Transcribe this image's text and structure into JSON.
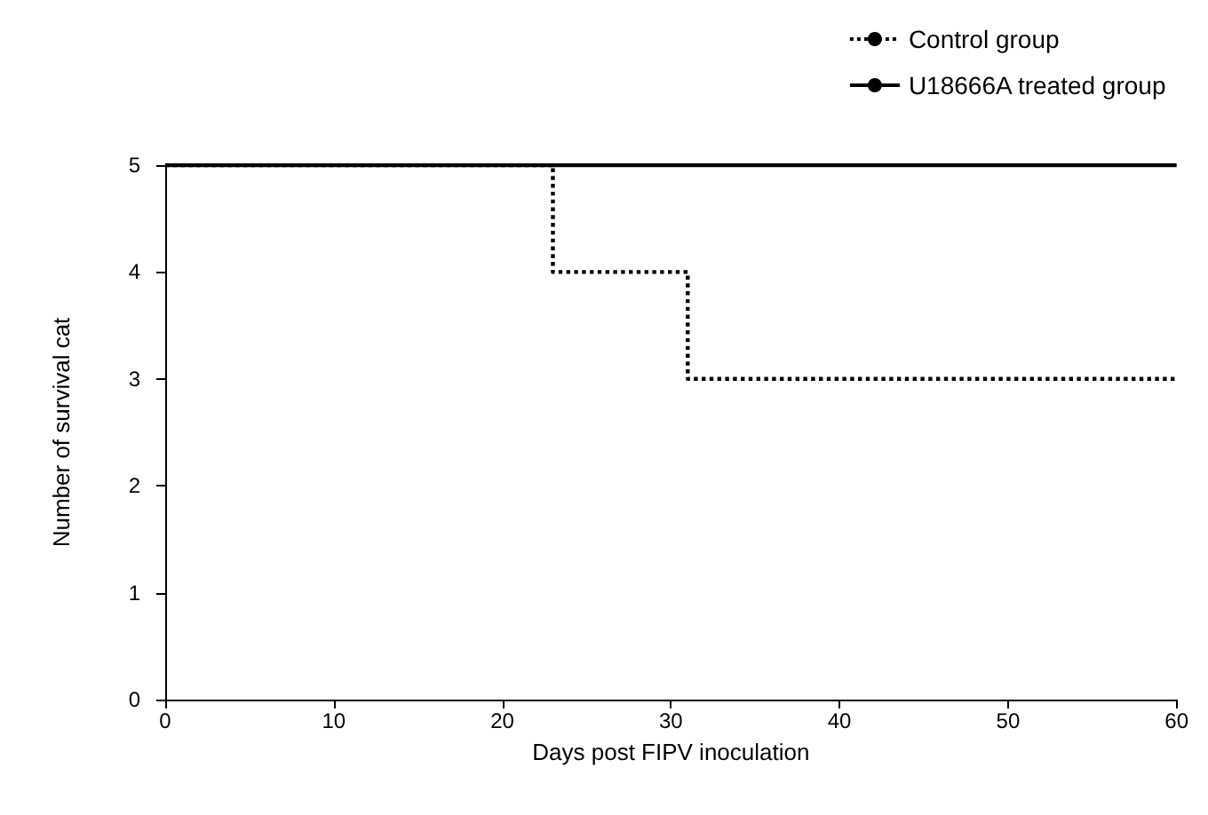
{
  "chart_data": {
    "type": "step",
    "xlabel": "Days post FIPV inoculation",
    "ylabel": "Number of survival cat",
    "series": [
      {
        "name": "Control group",
        "color": "#000000",
        "line_style": "dotted",
        "x": [
          0,
          23,
          31,
          60
        ],
        "values": [
          5,
          4,
          3,
          3
        ]
      },
      {
        "name": "U18666A treated group",
        "color": "#000000",
        "line_style": "solid",
        "x": [
          0,
          60
        ],
        "values": [
          5,
          5
        ]
      }
    ],
    "xlim": [
      0,
      60
    ],
    "xticks": [
      0,
      10,
      20,
      30,
      40,
      50,
      60
    ],
    "ylim": [
      0,
      5
    ],
    "yticks": [
      0,
      1,
      2,
      3,
      4,
      5
    ],
    "grid": false,
    "legend": "top right",
    "marker": "none"
  }
}
